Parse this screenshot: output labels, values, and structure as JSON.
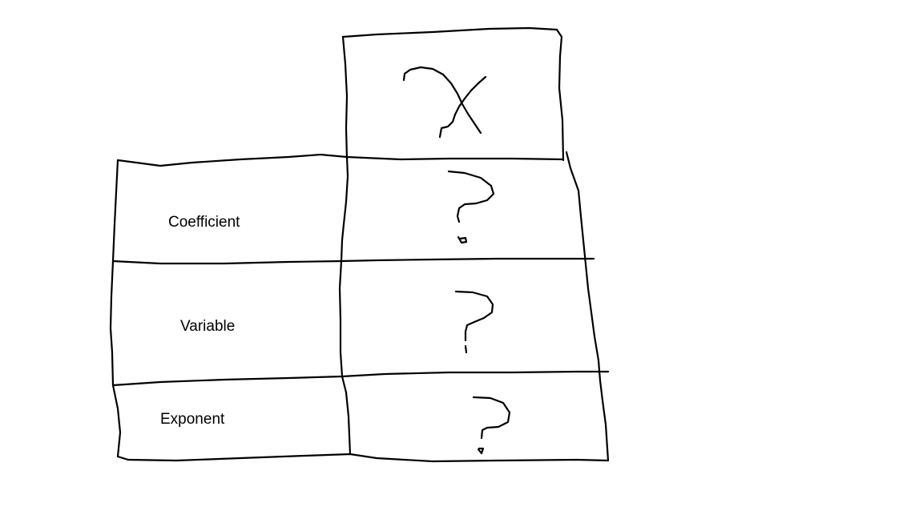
{
  "diagram": {
    "header_cell": {
      "symbol": "x"
    },
    "rows": [
      {
        "label": "Coefficient",
        "value_glyph": "question-mark"
      },
      {
        "label": "Variable",
        "value_glyph": "question-mark"
      },
      {
        "label": "Exponent",
        "value_glyph": "question-mark"
      }
    ],
    "ink_color": "#000000",
    "background_color": "#ffffff"
  }
}
